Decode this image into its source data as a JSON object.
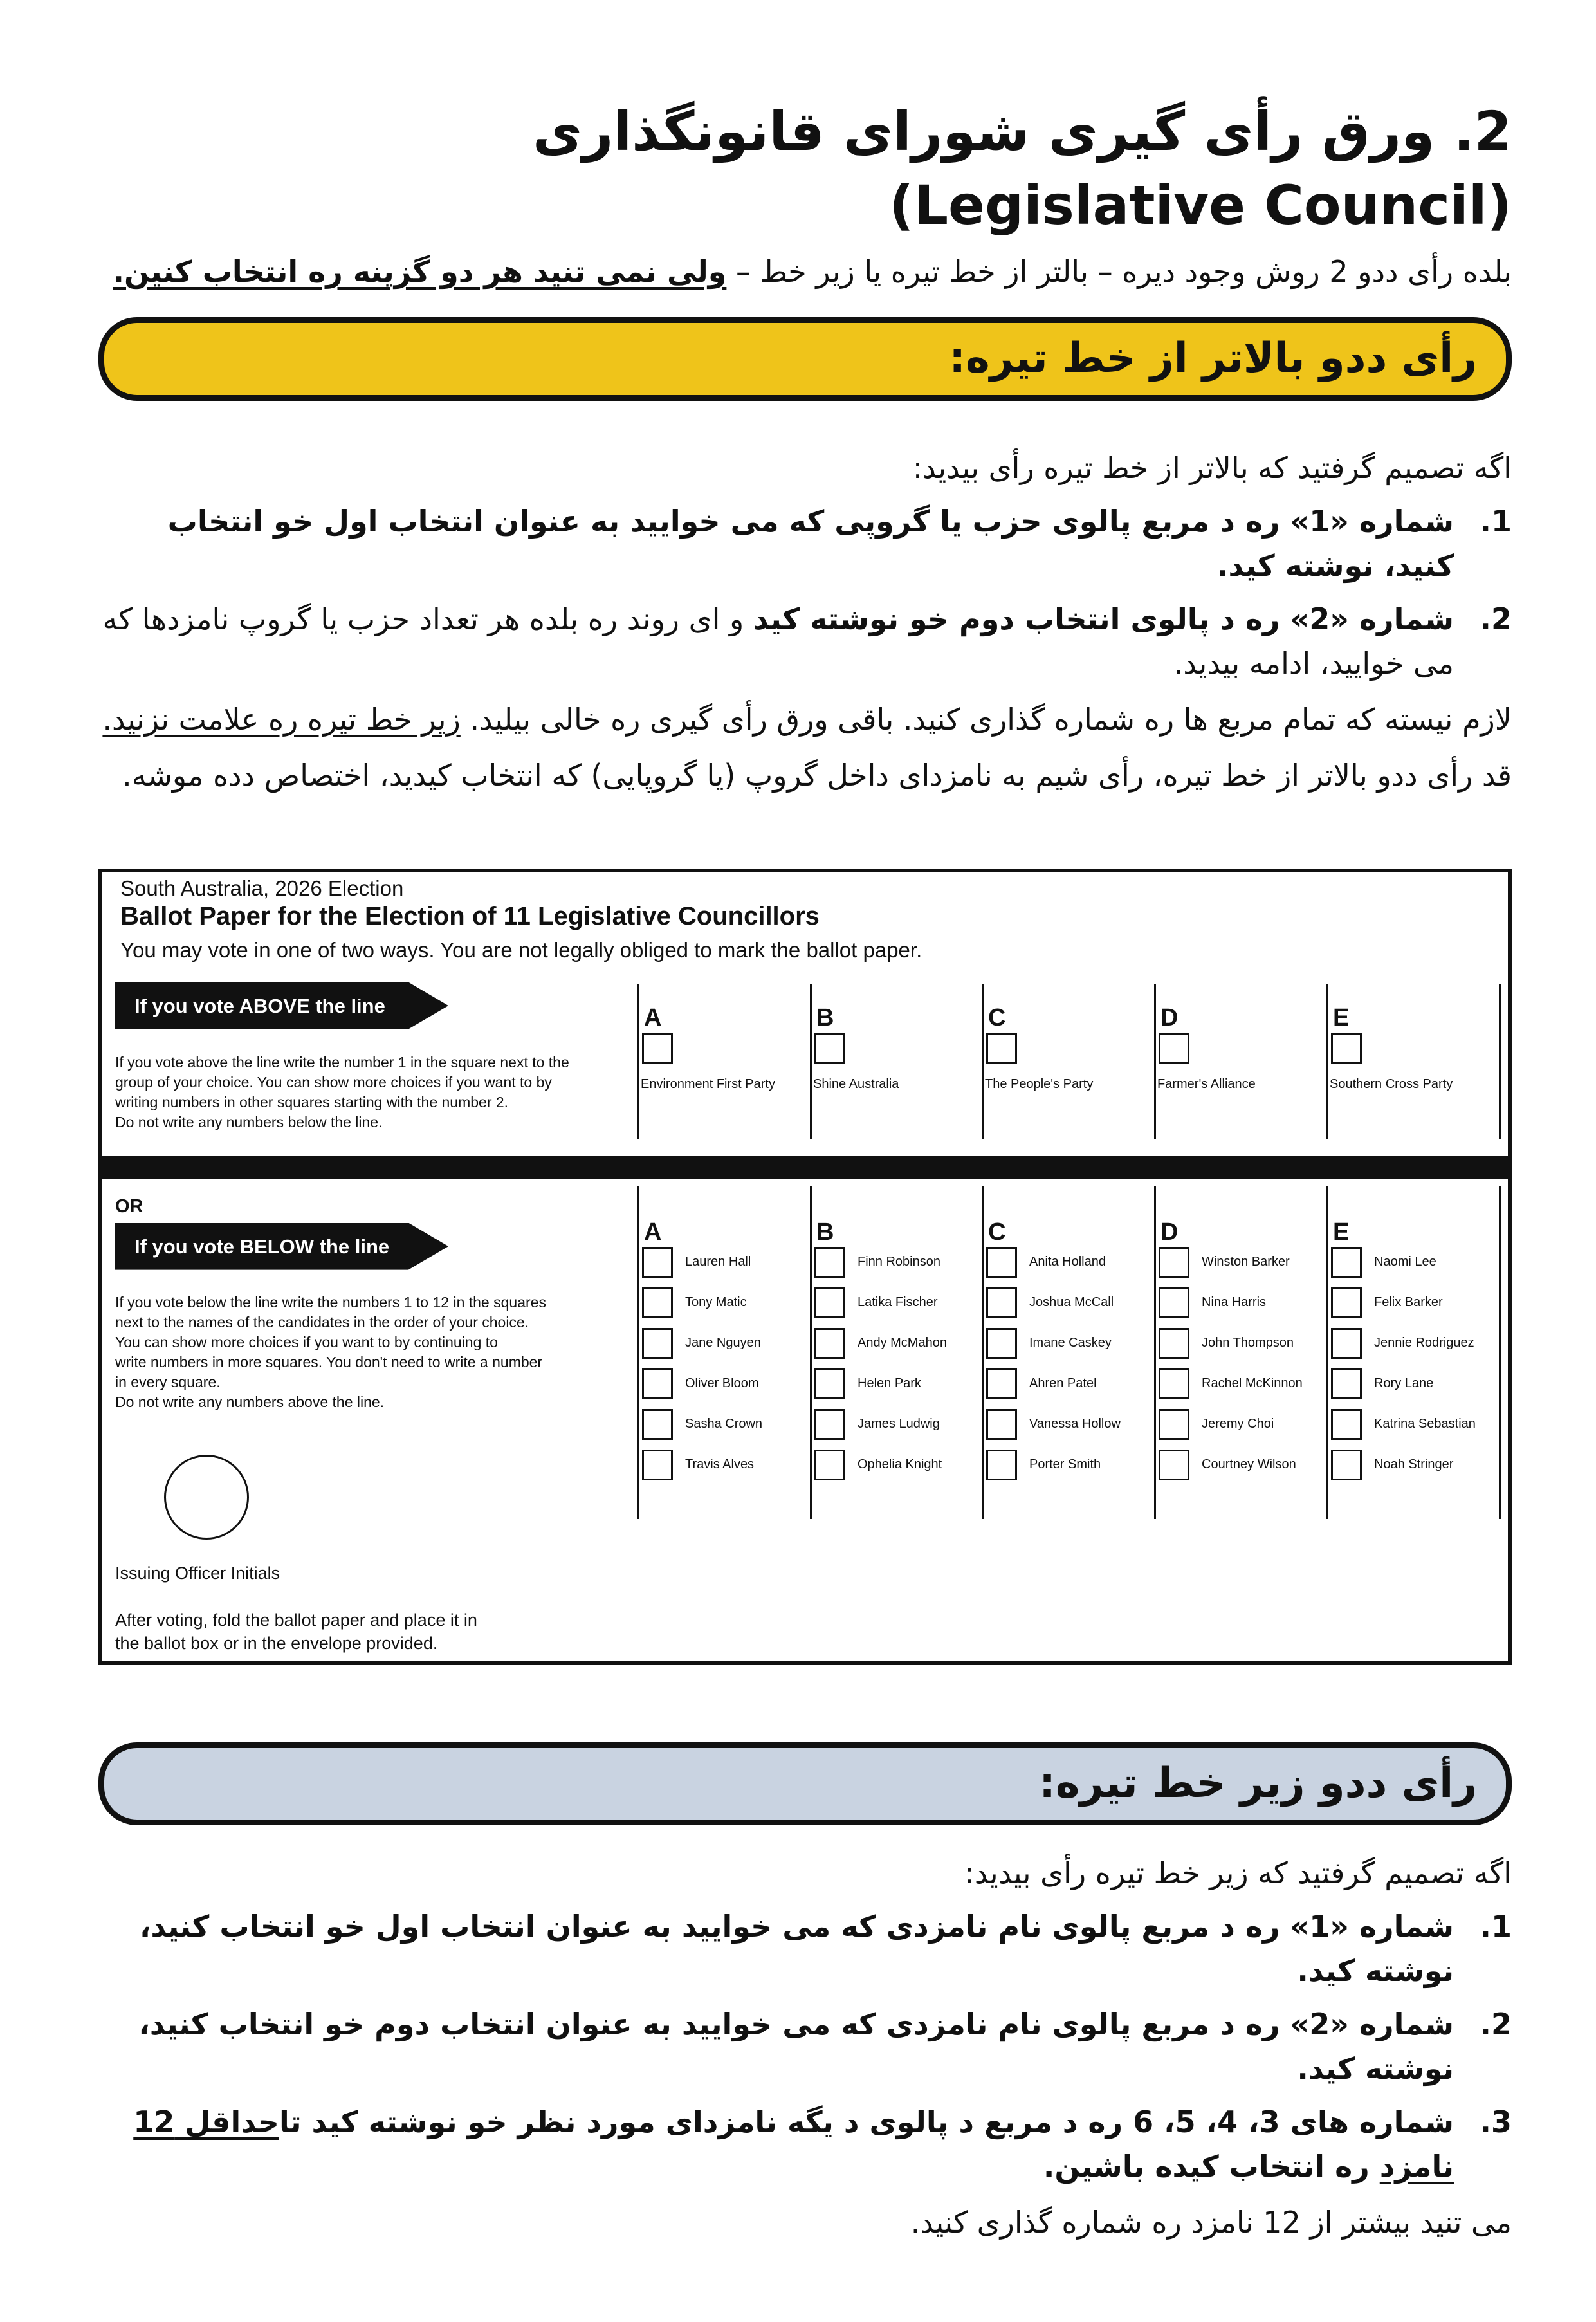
{
  "header": {
    "title_fa": "2. ورق رأی گیری شورای قانونگذاری",
    "title_en": "(Legislative Council)",
    "subtitle_plain": "بلده رأی ددو 2 روش وجود دیره – بالتر از خط تیره یا زیر خط – ",
    "subtitle_emph": "ولی نمی تنید هر دو گزینه ره انتخاب کنین."
  },
  "above_section": {
    "heading": "رأی ددو بالاتر از خط تیره:",
    "heading_color": "#EFC41A",
    "intro": "اگه تصمیم گرفتید که بالاتر از خط تیره رأی بیدید:",
    "items": [
      {
        "num": "1.",
        "bold": "شماره «1» ره د مربع پالوی حزب یا گروپی که می خوایید به عنوان انتخاب اول خو انتخاب کنید، نوشته کید.",
        "plain": ""
      },
      {
        "num": "2.",
        "bold": "شماره «2» ره د پالوی انتخاب دوم خو نوشته کید",
        "plain": " و ای روند ره بلده هر تعداد حزب یا گروپ نامزدها که می خوایید، ادامه بیدید."
      }
    ],
    "note_plain": "لازم نیسته که تمام مربع ها ره شماره گذاری کنید. باقی ورق رأی گیری ره خالی بیلید. ",
    "note_underline": "زیر خط تیره ره علامت نزنید.",
    "note2": "قد رأی ددو بالاتر از خط تیره، رأی شیم به نامزدای داخل گروپ (یا گروپایی) که انتخاب کیدید، اختصاص دده موشه."
  },
  "ballot": {
    "election": "South Australia, 2026 Election",
    "title": "Ballot Paper for the Election of 11 Legislative Councillors",
    "subtitle": "You may vote in one of two ways. You are not legally obliged to mark the ballot paper.",
    "above_banner": "If you vote ABOVE the line",
    "above_instructions": [
      "If you vote above the line write the number 1 in the square next to the",
      "group of your choice. You can show more choices if you want to by",
      "writing numbers in other squares starting with the number 2.",
      "Do not write any numbers below the line."
    ],
    "or_label": "OR",
    "below_banner": "If you vote BELOW the line",
    "below_instructions": [
      "If you vote below the line write the numbers 1 to 12 in the squares",
      "next to the names of the candidates in the order of your choice.",
      "You can show more choices if you want to by continuing to",
      "write numbers in more squares. You don't need to write a number",
      "in every square.",
      "Do not write any numbers above the line."
    ],
    "officer_label": "Issuing Officer Initials",
    "after_voting": [
      "After voting, fold the ballot paper and place it in",
      "the ballot box or in the envelope provided."
    ],
    "groups": [
      {
        "letter": "A",
        "party": "Environment First Party",
        "candidates": [
          "Lauren Hall",
          "Tony Matic",
          "Jane Nguyen",
          "Oliver Bloom",
          "Sasha Crown",
          "Travis Alves"
        ]
      },
      {
        "letter": "B",
        "party": "Shine Australia",
        "candidates": [
          "Finn Robinson",
          "Latika Fischer",
          "Andy McMahon",
          "Helen Park",
          "James Ludwig",
          "Ophelia Knight"
        ]
      },
      {
        "letter": "C",
        "party": "The People's Party",
        "candidates": [
          "Anita Holland",
          "Joshua McCall",
          "Imane Caskey",
          "Ahren Patel",
          "Vanessa Hollow",
          "Porter Smith"
        ]
      },
      {
        "letter": "D",
        "party": "Farmer's Alliance",
        "candidates": [
          "Winston Barker",
          "Nina Harris",
          "John Thompson",
          "Rachel McKinnon",
          "Jeremy Choi",
          "Courtney Wilson"
        ]
      },
      {
        "letter": "E",
        "party": "Southern Cross Party",
        "candidates": [
          "Naomi Lee",
          "Felix Barker",
          "Jennie Rodriguez",
          "Rory Lane",
          "Katrina Sebastian",
          "Noah Stringer"
        ]
      }
    ]
  },
  "below_section": {
    "heading": "رأی ددو زیر خط تیره:",
    "heading_color": "#C9D3E1",
    "intro": "اگه تصمیم گرفتید که زیر خط تیره رأی بیدید:",
    "items": [
      {
        "num": "1.",
        "text": "شماره «1» ره د مربع پالوی نام نامزدی که می خوایید به عنوان انتخاب اول خو انتخاب کنید، نوشته کید."
      },
      {
        "num": "2.",
        "text": "شماره «2» ره د مربع پالوی نام نامزدی که می خوایید به عنوان انتخاب دوم خو انتخاب کنید، نوشته کید."
      }
    ],
    "item3": {
      "num": "3.",
      "before": "شماره های 3، 4، 5، 6 ره د مربع د پالوی د یگه نامزدای مورد نظر خو نوشته کید تا",
      "underline": "حداقل 12 نامزد",
      "after": " ره انتخاب کیده باشین."
    },
    "note": "می تنید بیشتر از 12 نامزد ره شماره گذاری کنید."
  }
}
